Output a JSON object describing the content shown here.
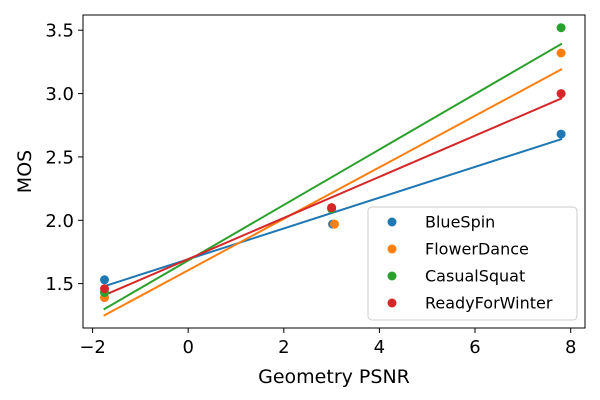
{
  "chart_data": {
    "type": "scatter",
    "title": "",
    "xlabel": "Geometry PSNR",
    "ylabel": "MOS",
    "xlim": [
      -2.2,
      8.3
    ],
    "ylim": [
      1.15,
      3.62
    ],
    "xticks": [
      -2,
      0,
      2,
      4,
      6,
      8
    ],
    "xtick_labels": [
      "−2",
      "0",
      "2",
      "4",
      "6",
      "8"
    ],
    "yticks": [
      1.5,
      2.0,
      2.5,
      3.0,
      3.5
    ],
    "ytick_labels": [
      "1.5",
      "2.0",
      "2.5",
      "3.0",
      "3.5"
    ],
    "grid": false,
    "legend_position": "lower-right",
    "series": [
      {
        "name": "BlueSpin",
        "color": "#1f77b4",
        "points": [
          {
            "x": -1.75,
            "y": 1.53
          },
          {
            "x": 3.02,
            "y": 1.97
          },
          {
            "x": 7.8,
            "y": 2.68
          }
        ],
        "fit": {
          "x": [
            -1.75,
            7.8
          ],
          "y": [
            1.48,
            2.64
          ]
        }
      },
      {
        "name": "FlowerDance",
        "color": "#ff7f0e",
        "points": [
          {
            "x": -1.75,
            "y": 1.39
          },
          {
            "x": 3.06,
            "y": 1.97
          },
          {
            "x": 7.8,
            "y": 3.32
          }
        ],
        "fit": {
          "x": [
            -1.75,
            7.8
          ],
          "y": [
            1.25,
            3.19
          ]
        }
      },
      {
        "name": "CasualSquat",
        "color": "#2ca02c",
        "points": [
          {
            "x": -1.75,
            "y": 1.43
          },
          {
            "x": 3.0,
            "y": 2.09
          },
          {
            "x": 7.8,
            "y": 3.52
          }
        ],
        "fit": {
          "x": [
            -1.75,
            7.8
          ],
          "y": [
            1.3,
            3.39
          ]
        }
      },
      {
        "name": "ReadyForWinter",
        "color": "#d62728",
        "points": [
          {
            "x": -1.75,
            "y": 1.46
          },
          {
            "x": 3.0,
            "y": 2.1
          },
          {
            "x": 7.8,
            "y": 3.0
          }
        ],
        "fit": {
          "x": [
            -1.75,
            7.8
          ],
          "y": [
            1.41,
            2.96
          ]
        }
      }
    ]
  }
}
